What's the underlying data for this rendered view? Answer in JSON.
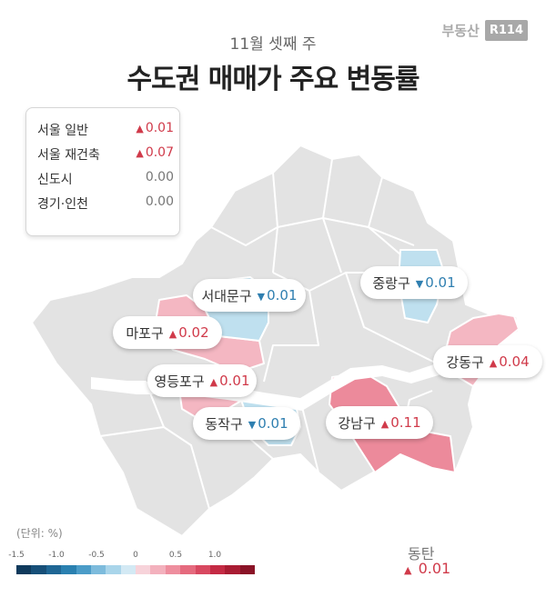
{
  "header": {
    "subtitle": "11월 셋째 주",
    "title": "수도권 매매가 주요 변동률",
    "brand_text": "부동산",
    "brand_box": "R114"
  },
  "summary": [
    {
      "label": "서울 일반",
      "arrow": "▲",
      "value": "0.01",
      "trend": "up"
    },
    {
      "label": "서울 재건축",
      "arrow": "▲",
      "value": "0.07",
      "trend": "up"
    },
    {
      "label": "신도시",
      "arrow": "",
      "value": "0.00",
      "trend": "zero"
    },
    {
      "label": "경기·인천",
      "arrow": "",
      "value": "0.00",
      "trend": "zero"
    }
  ],
  "districts": {
    "seodaemun": {
      "name": "서대문구",
      "arrow": "▼",
      "value": "0.01"
    },
    "jungnang": {
      "name": "중랑구",
      "arrow": "▼",
      "value": "0.01"
    },
    "mapo": {
      "name": "마포구",
      "arrow": "▲",
      "value": "0.02"
    },
    "gangdong": {
      "name": "강동구",
      "arrow": "▲",
      "value": "0.04"
    },
    "yeongdeungpo": {
      "name": "영등포구",
      "arrow": "▲",
      "value": "0.01"
    },
    "dongjak": {
      "name": "동작구",
      "arrow": "▼",
      "value": "0.01"
    },
    "gangnam": {
      "name": "강남구",
      "arrow": "▲",
      "value": "0.11"
    }
  },
  "dongtan": {
    "name": "동탄",
    "arrow": "▲",
    "value": "0.01"
  },
  "legend": {
    "title": "(단위: %)",
    "ticks": [
      "-1.5",
      "-1.0",
      "-0.5",
      "0",
      "0.5",
      "1.0"
    ],
    "colors": [
      "#0f3a5c",
      "#174f78",
      "#1f6694",
      "#2a80b0",
      "#4b9cc8",
      "#7dbbdc",
      "#a9d5ea",
      "#d3e9f4",
      "#f7d3da",
      "#f3b1bd",
      "#ee8e9e",
      "#e56a7e",
      "#d84860",
      "#c42a44",
      "#a91c33",
      "#8a1327"
    ],
    "up_color": "#d03a4a",
    "down_color": "#2f7fb0",
    "map_gray": "#e3e3e3",
    "map_red_light": "#f4b7c2",
    "map_red": "#ec8a9b",
    "map_blue": "#bfe0ef"
  }
}
